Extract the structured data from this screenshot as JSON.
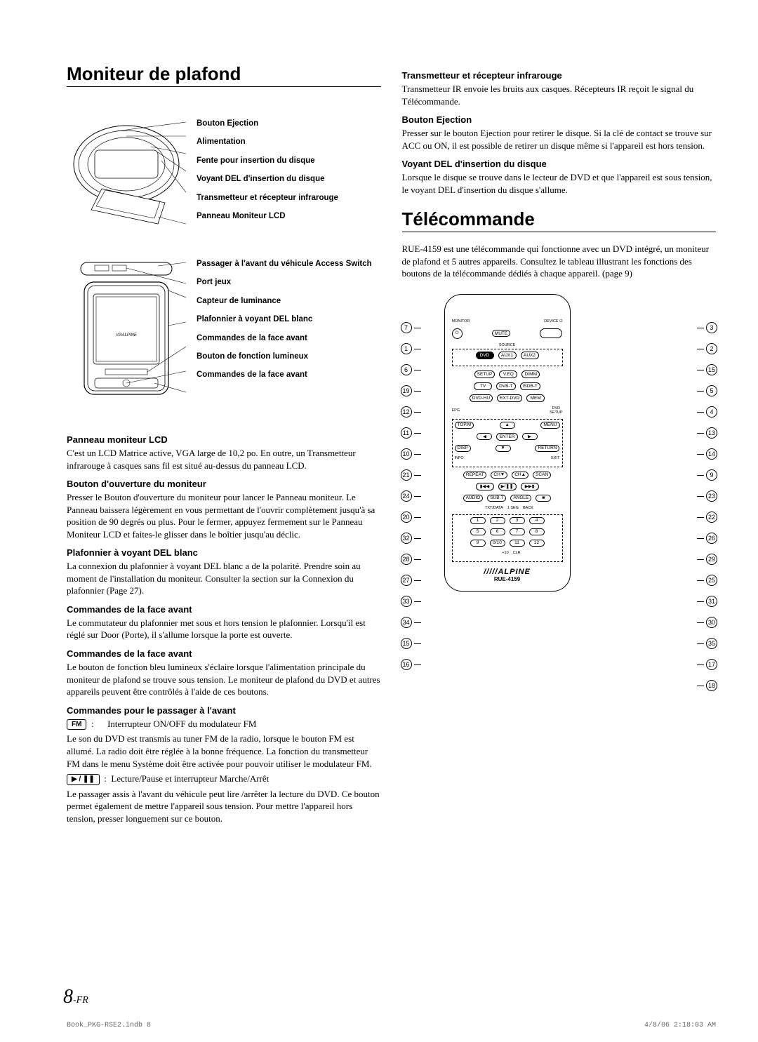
{
  "left": {
    "h1": "Moniteur de plafond",
    "diagram1_labels": [
      "Bouton Ejection",
      "Alimentation",
      "Fente pour insertion du disque",
      "Voyant DEL d'insertion du disque",
      "Transmetteur et récepteur infrarouge",
      "Panneau Moniteur LCD"
    ],
    "diagram2_labels": [
      "Passager à l'avant du véhicule Access Switch",
      "Port jeux",
      "Capteur de luminance",
      "Plafonnier à voyant DEL blanc",
      "Commandes de la face avant",
      "Bouton de fonction lumineux",
      "Commandes de la face avant"
    ],
    "sections": [
      {
        "h": "Panneau moniteur LCD",
        "p": "C'est un LCD Matrice active, VGA large de 10,2 po. En outre, un Transmetteur infrarouge à casques sans fil est situé au-dessus du panneau LCD."
      },
      {
        "h": "Bouton d'ouverture du moniteur",
        "p": "Presser le Bouton d'ouverture du moniteur pour lancer le Panneau moniteur. Le Panneau baissera légèrement en vous permettant de l'ouvrir complètement jusqu'à sa position de 90 degrés ou plus. Pour le fermer, appuyez fermement sur le Panneau Moniteur LCD et faites-le glisser dans le boîtier jusqu'au déclic."
      },
      {
        "h": "Plafonnier à voyant DEL blanc",
        "p": "La connexion du plafonnier à voyant DEL blanc a de la polarité. Prendre soin au moment de l'installation du moniteur. Consulter la section sur la Connexion du plafonnier (Page 27)."
      },
      {
        "h": "Commandes de la face avant",
        "p": "Le commutateur du plafonnier met sous et hors tension le plafonnier. Lorsqu'il est réglé sur Door (Porte), il s'allume lorsque la porte est ouverte."
      },
      {
        "h": "Commandes de la face avant",
        "p": "Le bouton de fonction bleu lumineux s'éclaire lorsque l'alimentation principale du moniteur de plafond se trouve sous tension. Le moniteur de plafond du DVD et autres appareils peuvent être contrôlés à l'aide de ces boutons."
      }
    ],
    "commandes_passager_h": "Commandes pour le passager à l'avant",
    "fm_label": "FM",
    "fm_desc": "Interrupteur ON/OFF du modulateur FM",
    "fm_p": "Le son du DVD est transmis au tuner FM de la radio, lorsque le bouton FM est allumé. La radio doit être réglée à la bonne fréquence. La fonction du transmetteur FM dans le menu Système doit être activée pour pouvoir utiliser le modulateur FM.",
    "play_label": "▶ / ❚❚",
    "play_desc": "Lecture/Pause et interrupteur Marche/Arrêt",
    "play_p": "Le passager assis à l'avant du véhicule peut lire /arrêter la lecture du DVD. Ce bouton permet également de mettre l'appareil sous tension. Pour mettre l'appareil hors tension, presser longuement sur ce bouton."
  },
  "right": {
    "sections_top": [
      {
        "h": "Transmetteur et récepteur infrarouge",
        "p": "Transmetteur IR envoie les bruits aux casques. Récepteurs IR reçoit le signal du Télécommande."
      },
      {
        "h": "Bouton Ejection",
        "p": "Presser sur le bouton Ejection pour retirer le disque. Si la clé de contact se trouve sur ACC ou ON, il est possible de retirer un disque même si l'appareil est hors tension."
      },
      {
        "h": "Voyant DEL d'insertion du disque",
        "p": "Lorsque le disque se trouve dans le lecteur de DVD et que l'appareil est sous tension, le voyant DEL d'insertion du disque s'allume."
      }
    ],
    "h1": "Télécommande",
    "intro": "RUE-4159 est une télécommande qui fonctionne avec un DVD intégré, un moniteur de plafond et 5 autres appareils. Consultez le tableau illustrant les fonctions des boutons de la télécommande dédiés à chaque appareil. (page 9)",
    "callouts_left": [
      "7",
      "1",
      "6",
      "19",
      "12",
      "11",
      "10",
      "21",
      "24",
      "20",
      "32",
      "28",
      "27",
      "33",
      "34",
      "15",
      "16"
    ],
    "callouts_right": [
      "3",
      "2",
      "15",
      "5",
      "4",
      "13",
      "14",
      "9",
      "23",
      "22",
      "26",
      "29",
      "25",
      "31",
      "30",
      "35",
      "17",
      "18"
    ],
    "remote": {
      "monitor": "MONITOR",
      "device": "DEVICE",
      "power": "⏻",
      "mute": "MUTE",
      "source": "SOURCE",
      "row_src": [
        "DVD",
        "AUX1",
        "AUX2"
      ],
      "row_set": [
        "SETUP",
        "V.EQ",
        "DIMM"
      ],
      "row_tv": [
        "TV",
        "DVB-T",
        "ISDB-T"
      ],
      "row_dvd": [
        "DVD-HU",
        "EXT-DVD",
        "MEM"
      ],
      "epg": "EPG",
      "dvd_lbl": "DVD",
      "setup_lbl": "SETUP",
      "topm": "TOP.M",
      "menu": "MENU",
      "nav": {
        "up": "▲",
        "down": "▼",
        "left": "◀",
        "right": "▶",
        "enter": "ENTER"
      },
      "disp": "DISP",
      "return": "RETURN",
      "info": "INFO",
      "exit": "EXIT",
      "row_ch": [
        "REPEAT",
        "CH▼",
        "CH▲",
        "SCAN"
      ],
      "row_play": [
        "▮◀◀",
        "▶/❚❚",
        "▶▶▮"
      ],
      "row_aud": [
        "AUDIO",
        "SUB.T",
        "ANGLE",
        "■"
      ],
      "row_aud_sub": [
        "",
        "TXT/DATA",
        "1 SEG",
        "BACK"
      ],
      "numpad1": [
        "1",
        "2",
        "3",
        "4"
      ],
      "numpad2": [
        "5",
        "6",
        "7",
        "8"
      ],
      "numpad3": [
        "9",
        "0/10",
        "11",
        "12"
      ],
      "numpad3_sub": [
        "",
        "",
        "+10",
        "CLR"
      ],
      "logo": "/////ALPINE",
      "model": "RUE-4159"
    }
  },
  "page_num": "8",
  "page_suffix": "-FR",
  "footer_left": "Book_PKG-RSE2.indb   8",
  "footer_right": "4/8/06   2:18:03 AM"
}
